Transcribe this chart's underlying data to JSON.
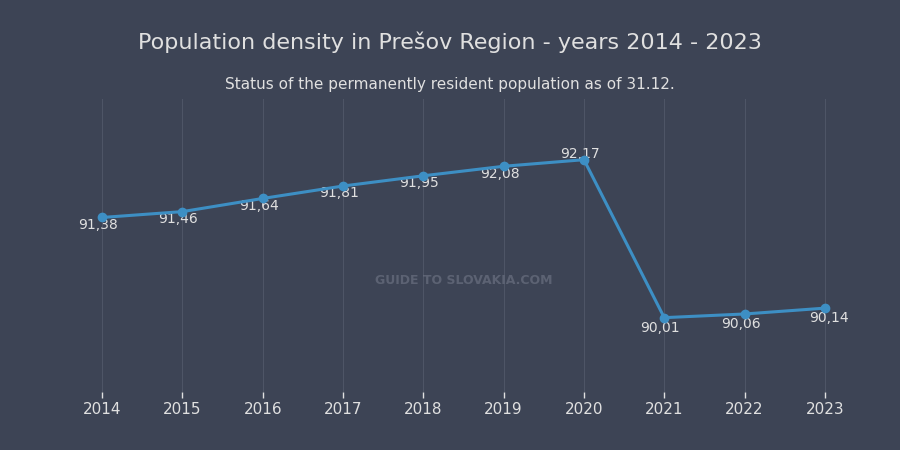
{
  "title": "Population density in Prešov Region - years 2014 - 2023",
  "subtitle": "Status of the permanently resident population as of 31.12.",
  "years": [
    2014,
    2015,
    2016,
    2017,
    2018,
    2019,
    2020,
    2021,
    2022,
    2023
  ],
  "values": [
    91.38,
    91.46,
    91.64,
    91.81,
    91.95,
    92.08,
    92.17,
    90.01,
    90.06,
    90.14
  ],
  "labels": [
    "91,38",
    "91,46",
    "91,64",
    "91,81",
    "91,95",
    "92,08",
    "92,17",
    "90,01",
    "90,06",
    "90,14"
  ],
  "line_color": "#3d8fc4",
  "marker_color": "#3d8fc4",
  "background_color": "#3d4455",
  "plot_bg_color": "#3d4455",
  "grid_color": "#4e5566",
  "text_color": "#e0e0e0",
  "title_fontsize": 16,
  "subtitle_fontsize": 11,
  "label_fontsize": 10,
  "tick_fontsize": 11,
  "ylim": [
    89.0,
    93.0
  ],
  "watermark": "GUIDE TO SLOVAKIA.COM"
}
